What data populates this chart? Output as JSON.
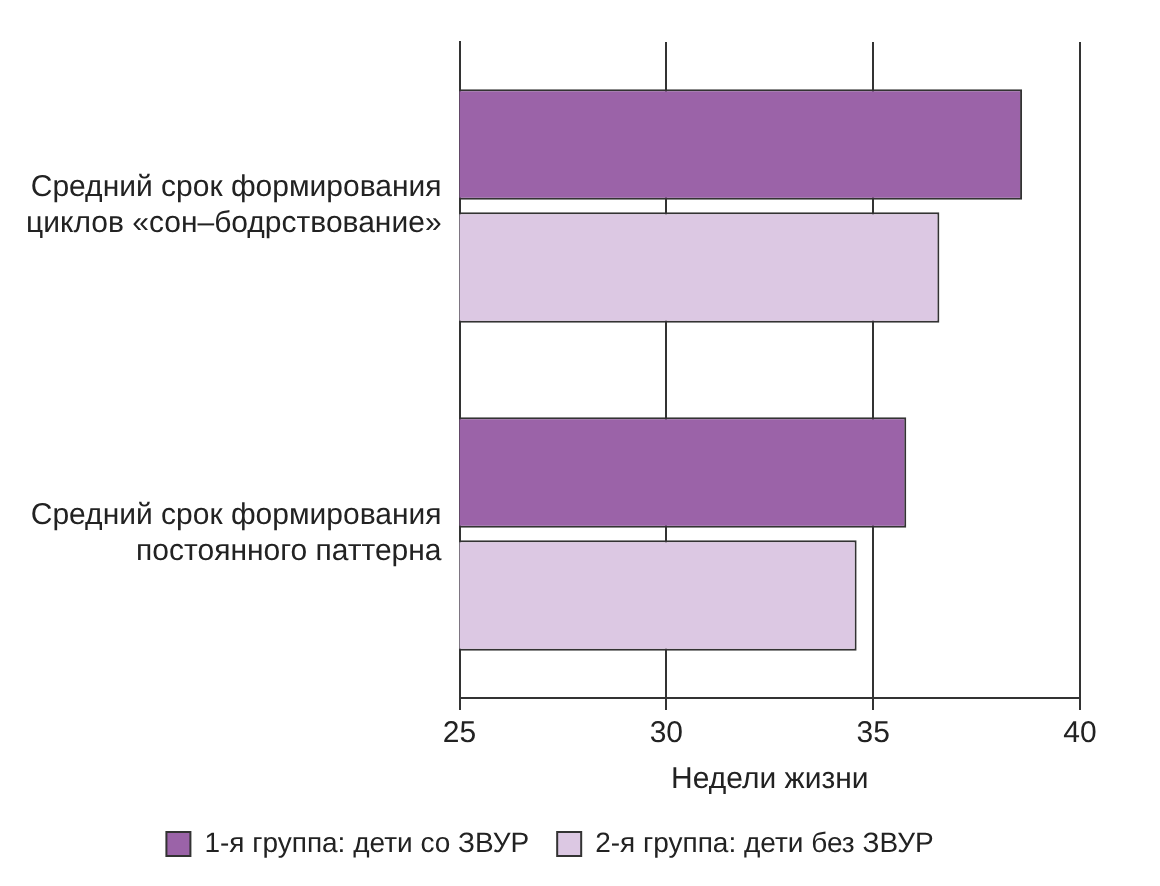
{
  "chart_data": {
    "type": "bar",
    "orientation": "horizontal",
    "xlabel": "Недели жизни",
    "categories": [
      "Средний срок формирования циклов «сон–бодрствование»",
      "Средний срок формирования постоянного паттерна"
    ],
    "series": [
      {
        "name": "1-я группа: дети со ЗВУР",
        "color": "#9b63a8",
        "values": [
          38.6,
          35.8
        ]
      },
      {
        "name": "2-я группа: дети без ЗВУР",
        "color": "#dcc8e3",
        "values": [
          36.6,
          34.6
        ]
      }
    ],
    "xlim": [
      25,
      40
    ],
    "xticks": [
      25,
      30,
      35,
      40
    ],
    "grid": "x",
    "legend": "bottom"
  }
}
